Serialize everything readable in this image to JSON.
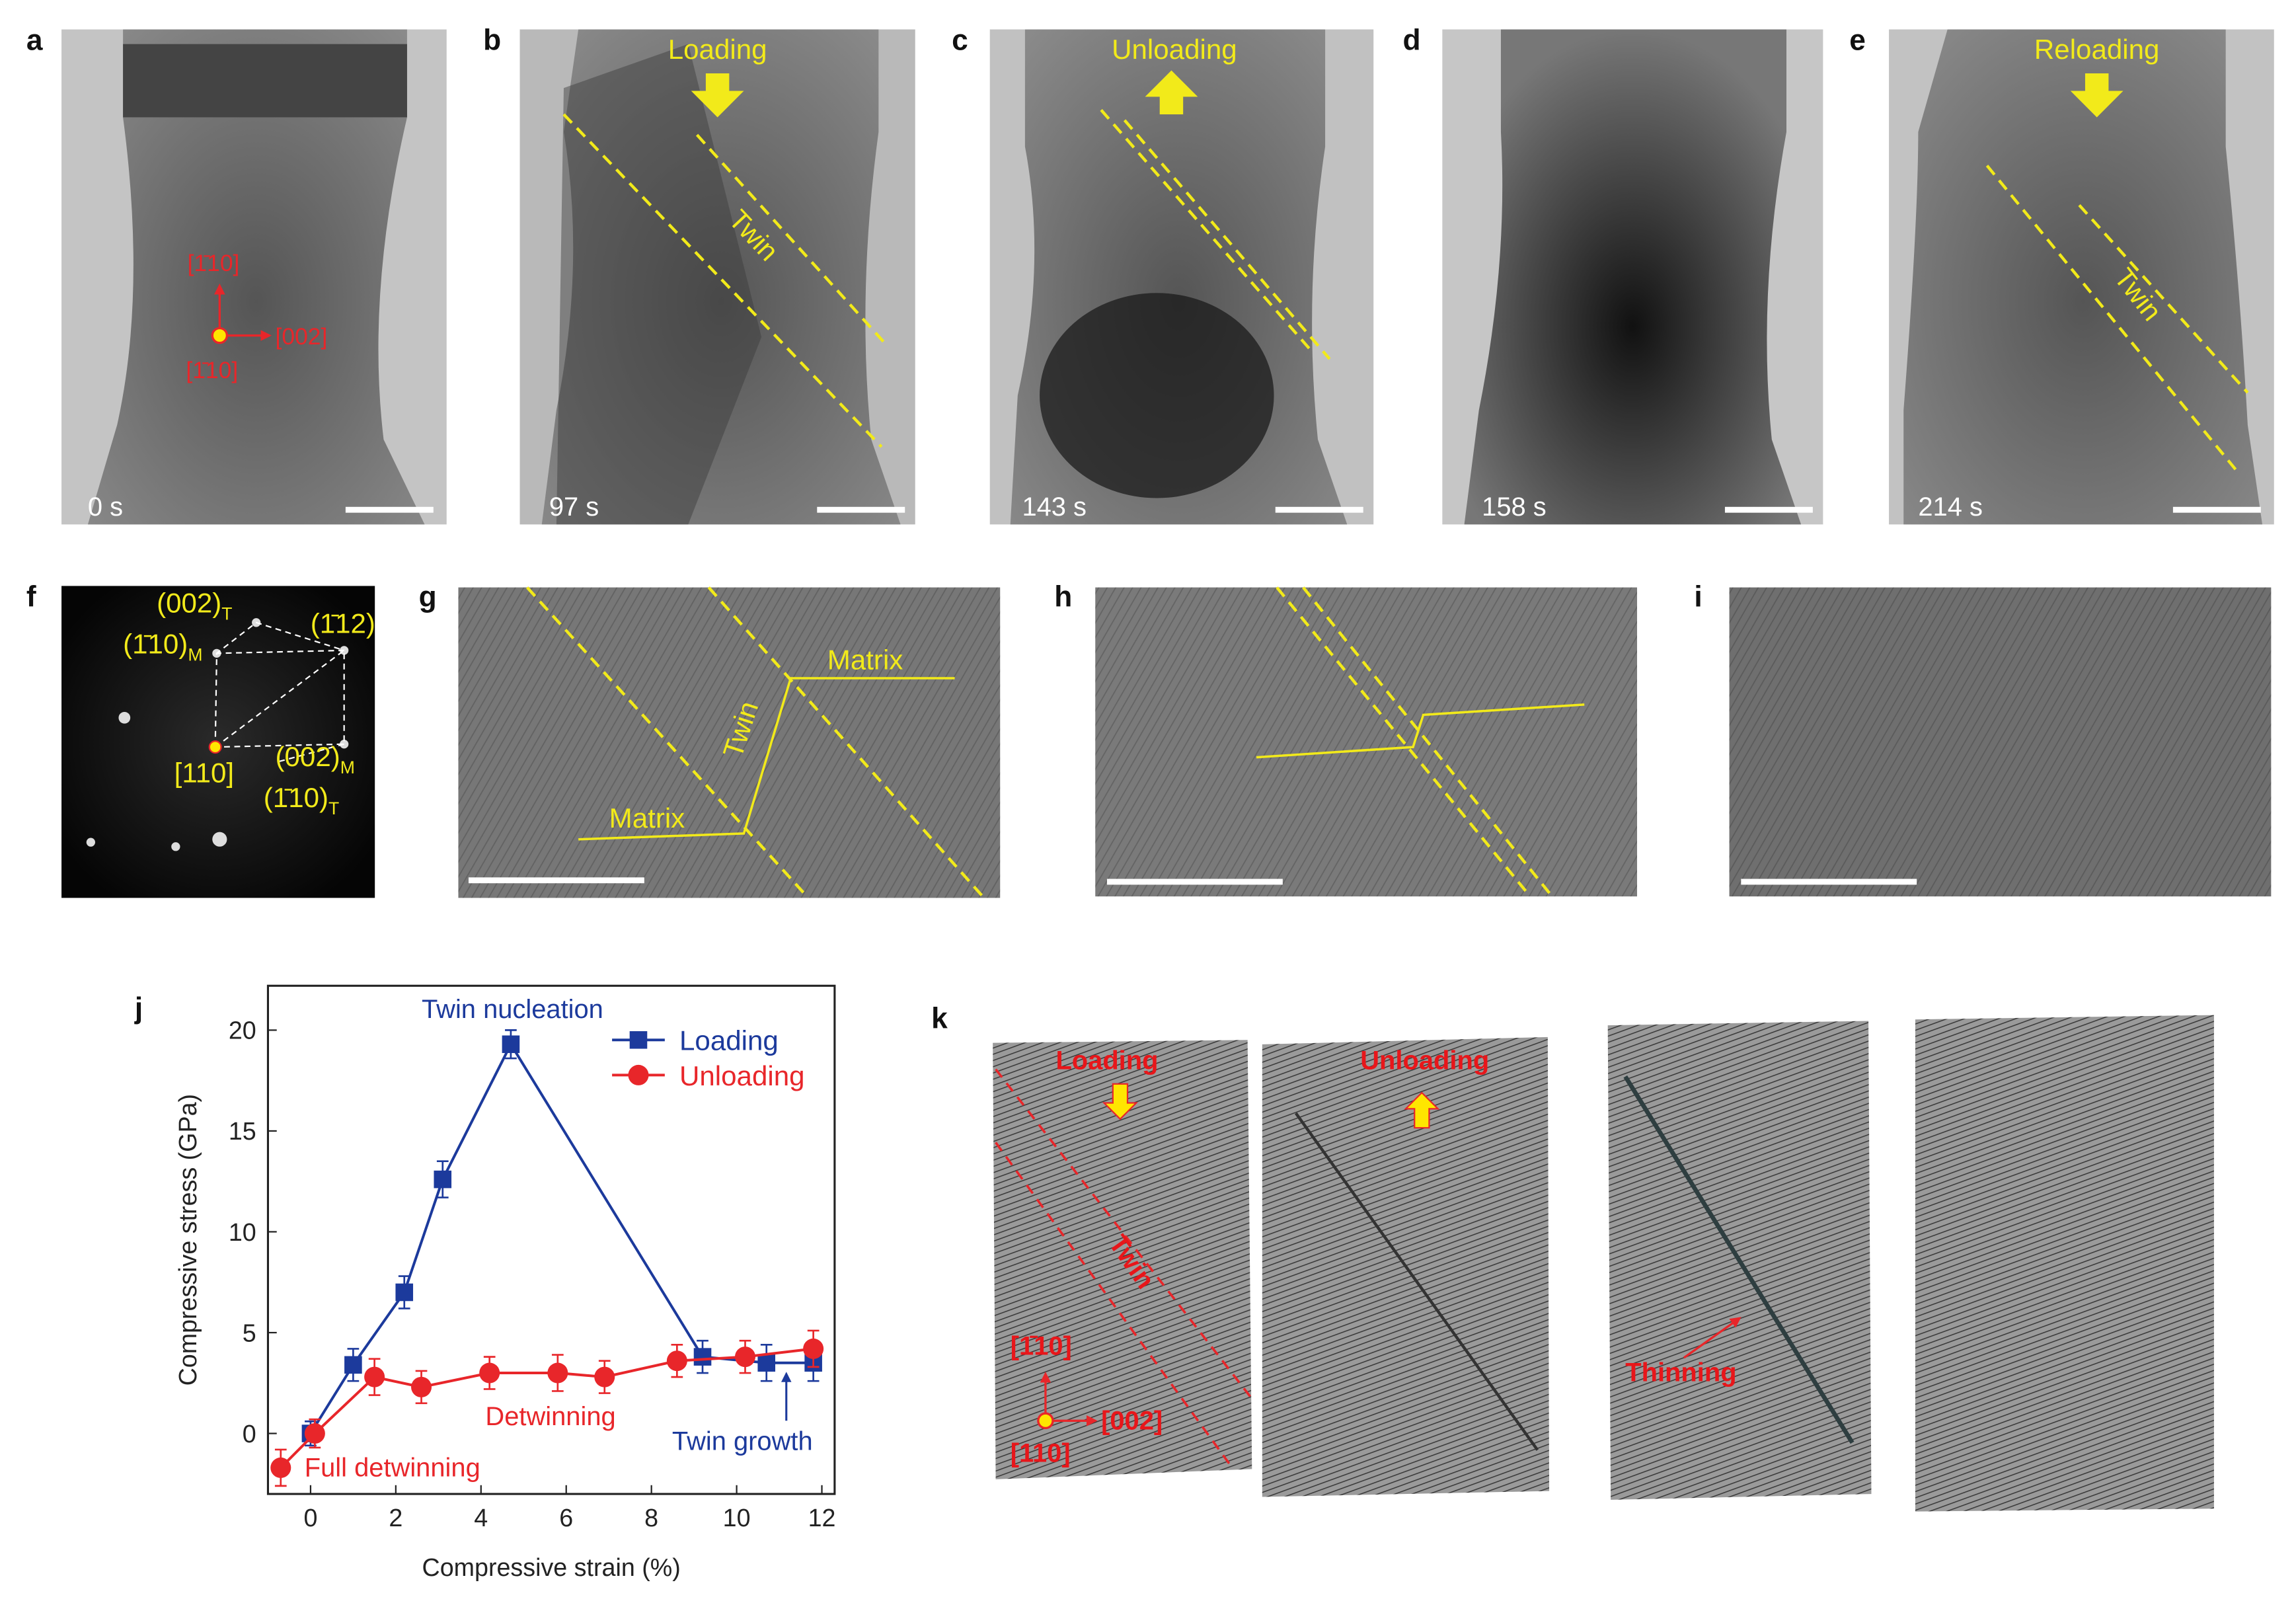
{
  "panels": {
    "a": {
      "label": "a",
      "time": "0 s",
      "dir_up": "[1̄10]",
      "dir_right": "[002]",
      "dir_out": "[1̄10]"
    },
    "b": {
      "label": "b",
      "action": "Loading",
      "feature": "Twin",
      "time": "97 s"
    },
    "c": {
      "label": "c",
      "action": "Unloading",
      "time": "143 s"
    },
    "d": {
      "label": "d",
      "time": "158 s"
    },
    "e": {
      "label": "e",
      "action": "Reloading",
      "feature": "Twin",
      "time": "214 s"
    },
    "f": {
      "label": "f",
      "spots": [
        {
          "text": "(002)",
          "sub": "T"
        },
        {
          "text": "(1̄12)"
        },
        {
          "text": "(1̄10)",
          "sub": "M"
        },
        {
          "text": "[110]"
        },
        {
          "text": "(002)",
          "sub": "M"
        },
        {
          "text": "(1̄10)",
          "sub": "T"
        }
      ]
    },
    "g": {
      "label": "g",
      "matrix_top": "Matrix",
      "twin": "Twin",
      "matrix_bottom": "Matrix"
    },
    "h": {
      "label": "h"
    },
    "i": {
      "label": "i"
    },
    "j": {
      "label": "j"
    },
    "k": {
      "label": "k",
      "loading": "Loading",
      "unloading": "Unloading",
      "twin": "Twin",
      "dir_up": "[1̄10]",
      "dir_right": "[002]",
      "dir_out": "[110]",
      "thinning": "Thinning"
    }
  },
  "chart_data": {
    "type": "line",
    "x_label": "Compressive strain (%)",
    "y_label": "Compressive stress (GPa)",
    "xlim": [
      -1,
      12.3
    ],
    "ylim": [
      -3,
      22.2
    ],
    "xticks": [
      0,
      2,
      4,
      6,
      8,
      10,
      12
    ],
    "yticks": [
      0,
      5,
      10,
      15,
      20
    ],
    "legend": "upper right",
    "series": [
      {
        "name": "Loading",
        "color": "#1c3a9c",
        "marker": "square",
        "x": [
          0,
          1.0,
          2.2,
          3.1,
          4.7,
          9.2,
          10.7,
          11.8
        ],
        "values": [
          0,
          3.4,
          7.0,
          12.6,
          19.3,
          3.8,
          3.5,
          3.5
        ],
        "errors": [
          0.6,
          0.8,
          0.8,
          0.9,
          0.7,
          0.8,
          0.9,
          0.9
        ]
      },
      {
        "name": "Unloading",
        "color": "#e8262a",
        "marker": "circle",
        "x": [
          -0.7,
          0.1,
          1.5,
          2.6,
          4.2,
          5.8,
          6.9,
          8.6,
          10.2,
          11.8
        ],
        "values": [
          -1.7,
          0,
          2.8,
          2.3,
          3.0,
          3.0,
          2.8,
          3.6,
          3.8,
          4.2
        ],
        "errors": [
          0.9,
          0.7,
          0.9,
          0.8,
          0.8,
          0.9,
          0.8,
          0.8,
          0.8,
          0.9
        ]
      }
    ],
    "annotations": [
      {
        "text": "Twin nucleation",
        "color": "#1c3a9c"
      },
      {
        "text": "Detwinning",
        "color": "#e8262a"
      },
      {
        "text": "Full detwinning",
        "color": "#e8262a"
      },
      {
        "text": "Twin growth",
        "color": "#1c3a9c"
      }
    ]
  }
}
